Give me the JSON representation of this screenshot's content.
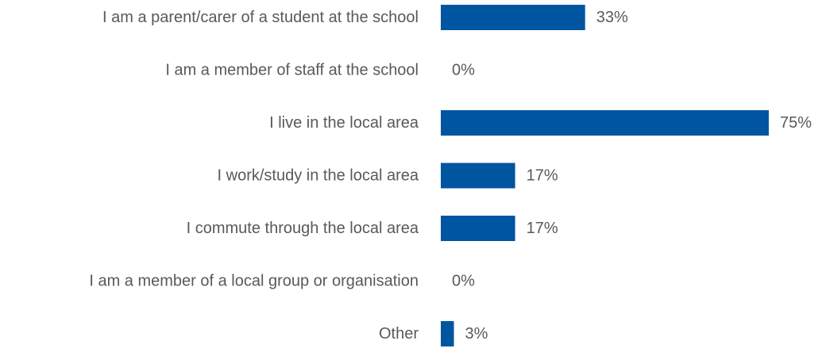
{
  "chart_data": {
    "type": "bar",
    "orientation": "horizontal",
    "title": "",
    "xlabel": "",
    "ylabel": "",
    "categories": [
      "I am a parent/carer of a student at the school",
      "I am a member of staff at the school",
      "I live in the local area",
      "I work/study in the local area",
      "I commute through the local area",
      "I am a member of a local group or organisation",
      "Other"
    ],
    "values": [
      33,
      0,
      75,
      17,
      17,
      0,
      3
    ],
    "value_labels": [
      "33%",
      "0%",
      "75%",
      "17%",
      "17%",
      "0%",
      "3%"
    ],
    "xlim": [
      0,
      75
    ],
    "grid": false,
    "legend": "none",
    "bar_color": "#0055A0",
    "label_color": "#595959"
  }
}
